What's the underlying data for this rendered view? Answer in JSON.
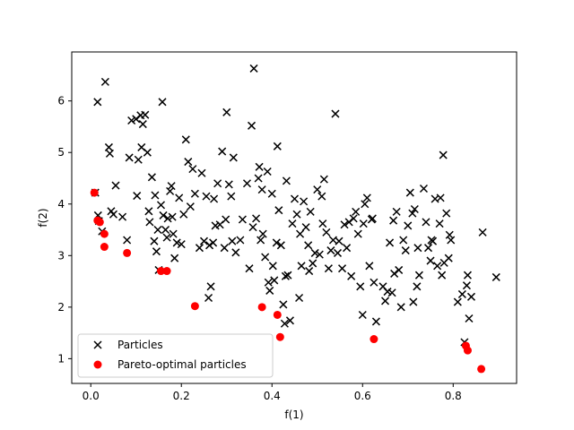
{
  "chart_data": {
    "type": "scatter",
    "title": "",
    "xlabel": "f(1)",
    "ylabel": "f(2)",
    "xlim": [
      -0.042,
      0.94
    ],
    "ylim": [
      0.52,
      6.95
    ],
    "xticks": [
      "0.0",
      "0.2",
      "0.4",
      "0.6",
      "0.8"
    ],
    "xtick_values": [
      0.0,
      0.2,
      0.4,
      0.6,
      0.8
    ],
    "yticks": [
      "1",
      "2",
      "3",
      "4",
      "5",
      "6"
    ],
    "ytick_values": [
      1,
      2,
      3,
      4,
      5,
      6
    ],
    "grid": false,
    "legend_position": "lower-left",
    "series": [
      {
        "name": "Particles",
        "marker": "x",
        "color": "#000000",
        "points": [
          [
            0.01,
            4.22
          ],
          [
            0.015,
            5.98
          ],
          [
            0.016,
            3.78
          ],
          [
            0.018,
            3.67
          ],
          [
            0.025,
            3.47
          ],
          [
            0.032,
            6.37
          ],
          [
            0.04,
            5.1
          ],
          [
            0.042,
            4.98
          ],
          [
            0.045,
            3.86
          ],
          [
            0.05,
            3.8
          ],
          [
            0.055,
            4.36
          ],
          [
            0.07,
            3.75
          ],
          [
            0.08,
            3.3
          ],
          [
            0.085,
            4.9
          ],
          [
            0.09,
            5.62
          ],
          [
            0.1,
            5.65
          ],
          [
            0.102,
            4.16
          ],
          [
            0.105,
            4.86
          ],
          [
            0.11,
            5.72
          ],
          [
            0.112,
            5.1
          ],
          [
            0.115,
            5.55
          ],
          [
            0.12,
            5.73
          ],
          [
            0.125,
            5.0
          ],
          [
            0.128,
            3.86
          ],
          [
            0.13,
            3.65
          ],
          [
            0.135,
            4.52
          ],
          [
            0.14,
            3.28
          ],
          [
            0.142,
            4.17
          ],
          [
            0.145,
            3.08
          ],
          [
            0.148,
            3.5
          ],
          [
            0.15,
            2.72
          ],
          [
            0.155,
            3.98
          ],
          [
            0.158,
            5.98
          ],
          [
            0.16,
            3.78
          ],
          [
            0.165,
            3.5
          ],
          [
            0.168,
            3.35
          ],
          [
            0.17,
            3.72
          ],
          [
            0.175,
            4.25
          ],
          [
            0.178,
            4.35
          ],
          [
            0.18,
            3.75
          ],
          [
            0.182,
            3.42
          ],
          [
            0.185,
            2.95
          ],
          [
            0.19,
            3.25
          ],
          [
            0.195,
            4.12
          ],
          [
            0.2,
            3.22
          ],
          [
            0.205,
            3.8
          ],
          [
            0.21,
            5.25
          ],
          [
            0.215,
            4.82
          ],
          [
            0.22,
            3.95
          ],
          [
            0.225,
            4.68
          ],
          [
            0.23,
            4.2
          ],
          [
            0.24,
            3.15
          ],
          [
            0.245,
            4.6
          ],
          [
            0.25,
            3.28
          ],
          [
            0.255,
            4.15
          ],
          [
            0.26,
            2.18
          ],
          [
            0.262,
            3.2
          ],
          [
            0.265,
            2.4
          ],
          [
            0.27,
            3.25
          ],
          [
            0.272,
            4.1
          ],
          [
            0.275,
            3.58
          ],
          [
            0.28,
            4.4
          ],
          [
            0.285,
            3.6
          ],
          [
            0.29,
            5.02
          ],
          [
            0.295,
            3.15
          ],
          [
            0.298,
            3.7
          ],
          [
            0.3,
            5.78
          ],
          [
            0.305,
            4.38
          ],
          [
            0.31,
            4.15
          ],
          [
            0.312,
            3.28
          ],
          [
            0.315,
            4.9
          ],
          [
            0.32,
            3.06
          ],
          [
            0.33,
            3.3
          ],
          [
            0.335,
            3.7
          ],
          [
            0.345,
            4.4
          ],
          [
            0.35,
            2.75
          ],
          [
            0.355,
            5.52
          ],
          [
            0.358,
            3.55
          ],
          [
            0.36,
            6.63
          ],
          [
            0.365,
            3.72
          ],
          [
            0.37,
            4.5
          ],
          [
            0.372,
            4.72
          ],
          [
            0.375,
            3.3
          ],
          [
            0.378,
            4.28
          ],
          [
            0.38,
            3.42
          ],
          [
            0.385,
            2.97
          ],
          [
            0.39,
            4.63
          ],
          [
            0.392,
            2.48
          ],
          [
            0.395,
            2.32
          ],
          [
            0.4,
            4.2
          ],
          [
            0.402,
            2.8
          ],
          [
            0.405,
            2.52
          ],
          [
            0.41,
            3.25
          ],
          [
            0.412,
            5.12
          ],
          [
            0.415,
            3.88
          ],
          [
            0.42,
            3.2
          ],
          [
            0.425,
            2.05
          ],
          [
            0.428,
            1.68
          ],
          [
            0.43,
            2.6
          ],
          [
            0.432,
            4.45
          ],
          [
            0.435,
            2.62
          ],
          [
            0.44,
            1.74
          ],
          [
            0.445,
            3.62
          ],
          [
            0.45,
            4.1
          ],
          [
            0.455,
            3.8
          ],
          [
            0.46,
            2.18
          ],
          [
            0.462,
            3.42
          ],
          [
            0.465,
            2.8
          ],
          [
            0.47,
            4.05
          ],
          [
            0.475,
            3.55
          ],
          [
            0.48,
            3.2
          ],
          [
            0.482,
            2.7
          ],
          [
            0.485,
            3.85
          ],
          [
            0.49,
            2.85
          ],
          [
            0.495,
            3.05
          ],
          [
            0.5,
            4.28
          ],
          [
            0.505,
            3.02
          ],
          [
            0.51,
            4.15
          ],
          [
            0.512,
            3.62
          ],
          [
            0.515,
            4.48
          ],
          [
            0.52,
            3.45
          ],
          [
            0.525,
            2.75
          ],
          [
            0.53,
            3.1
          ],
          [
            0.535,
            3.3
          ],
          [
            0.54,
            5.75
          ],
          [
            0.545,
            3.05
          ],
          [
            0.548,
            3.28
          ],
          [
            0.555,
            2.75
          ],
          [
            0.56,
            3.6
          ],
          [
            0.565,
            3.15
          ],
          [
            0.57,
            3.65
          ],
          [
            0.575,
            2.6
          ],
          [
            0.58,
            3.72
          ],
          [
            0.585,
            3.85
          ],
          [
            0.59,
            3.42
          ],
          [
            0.595,
            2.4
          ],
          [
            0.6,
            1.85
          ],
          [
            0.602,
            3.62
          ],
          [
            0.605,
            4.0
          ],
          [
            0.61,
            4.12
          ],
          [
            0.615,
            2.8
          ],
          [
            0.62,
            3.7
          ],
          [
            0.622,
            3.72
          ],
          [
            0.625,
            2.48
          ],
          [
            0.63,
            1.72
          ],
          [
            0.645,
            2.4
          ],
          [
            0.65,
            2.12
          ],
          [
            0.655,
            2.3
          ],
          [
            0.66,
            3.25
          ],
          [
            0.665,
            2.28
          ],
          [
            0.668,
            3.68
          ],
          [
            0.67,
            2.65
          ],
          [
            0.675,
            3.85
          ],
          [
            0.68,
            2.72
          ],
          [
            0.685,
            2.0
          ],
          [
            0.69,
            3.3
          ],
          [
            0.695,
            3.1
          ],
          [
            0.7,
            3.58
          ],
          [
            0.705,
            4.22
          ],
          [
            0.71,
            3.82
          ],
          [
            0.712,
            2.1
          ],
          [
            0.715,
            3.9
          ],
          [
            0.72,
            2.4
          ],
          [
            0.722,
            3.15
          ],
          [
            0.725,
            2.62
          ],
          [
            0.735,
            4.3
          ],
          [
            0.74,
            3.65
          ],
          [
            0.745,
            3.15
          ],
          [
            0.75,
            2.9
          ],
          [
            0.752,
            3.3
          ],
          [
            0.755,
            3.28
          ],
          [
            0.76,
            4.1
          ],
          [
            0.765,
            2.8
          ],
          [
            0.77,
            3.62
          ],
          [
            0.772,
            4.12
          ],
          [
            0.775,
            2.62
          ],
          [
            0.778,
            4.95
          ],
          [
            0.78,
            2.86
          ],
          [
            0.785,
            3.82
          ],
          [
            0.79,
            2.95
          ],
          [
            0.792,
            3.4
          ],
          [
            0.795,
            3.3
          ],
          [
            0.81,
            2.1
          ],
          [
            0.82,
            2.25
          ],
          [
            0.825,
            1.32
          ],
          [
            0.83,
            2.42
          ],
          [
            0.832,
            2.62
          ],
          [
            0.835,
            1.78
          ],
          [
            0.84,
            2.2
          ],
          [
            0.865,
            3.45
          ],
          [
            0.895,
            2.58
          ]
        ]
      },
      {
        "name": "Pareto-optimal particles",
        "marker": "o",
        "color": "#ff0000",
        "points": [
          [
            0.008,
            4.22
          ],
          [
            0.015,
            3.68
          ],
          [
            0.02,
            3.65
          ],
          [
            0.03,
            3.42
          ],
          [
            0.03,
            3.17
          ],
          [
            0.08,
            3.05
          ],
          [
            0.155,
            2.7
          ],
          [
            0.168,
            2.7
          ],
          [
            0.23,
            2.02
          ],
          [
            0.378,
            2.0
          ],
          [
            0.412,
            1.85
          ],
          [
            0.418,
            1.42
          ],
          [
            0.625,
            1.38
          ],
          [
            0.828,
            1.25
          ],
          [
            0.832,
            1.16
          ],
          [
            0.862,
            0.8
          ]
        ]
      }
    ]
  }
}
